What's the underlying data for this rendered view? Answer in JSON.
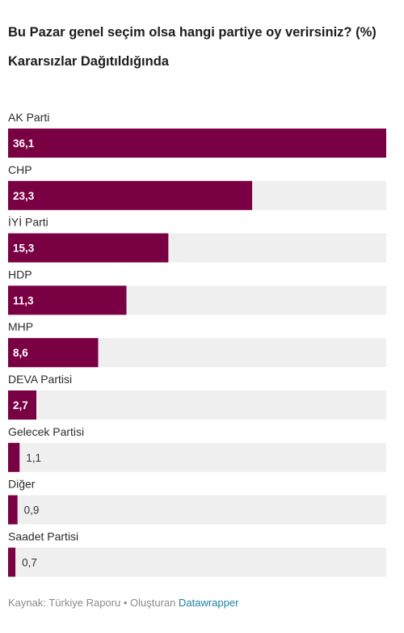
{
  "header": {
    "title": "Bu Pazar genel seçim olsa hangi partiye oy verirsiniz? (%)",
    "subtitle": "Kararsızlar Dağıtıldığında"
  },
  "footer": {
    "source_label": "Kaynak: Türkiye Raporu • Oluşturan",
    "tool": "Datawrapper"
  },
  "colors": {
    "bar": "#7a0044",
    "track": "#efefef",
    "label_inside": "#ffffff",
    "label_outside": "#333333"
  },
  "chart_data": {
    "type": "bar",
    "orientation": "horizontal",
    "title": "Bu Pazar genel seçim olsa hangi partiye oy verirsiniz? (%)",
    "subtitle": "Kararsızlar Dağıtıldığında",
    "categories": [
      "AK Parti",
      "CHP",
      "İYİ Parti",
      "HDP",
      "MHP",
      "DEVA Partisi",
      "Gelecek Partisi",
      "Diğer",
      "Saadet Partisi"
    ],
    "values": [
      36.1,
      23.3,
      15.3,
      11.3,
      8.6,
      2.7,
      1.1,
      0.9,
      0.7
    ],
    "value_labels": [
      "36,1",
      "23,3",
      "15,3",
      "11,3",
      "8,6",
      "2,7",
      "1,1",
      "0,9",
      "0,7"
    ],
    "xlim": [
      0,
      36.1
    ],
    "grid": false,
    "legend": "none"
  }
}
